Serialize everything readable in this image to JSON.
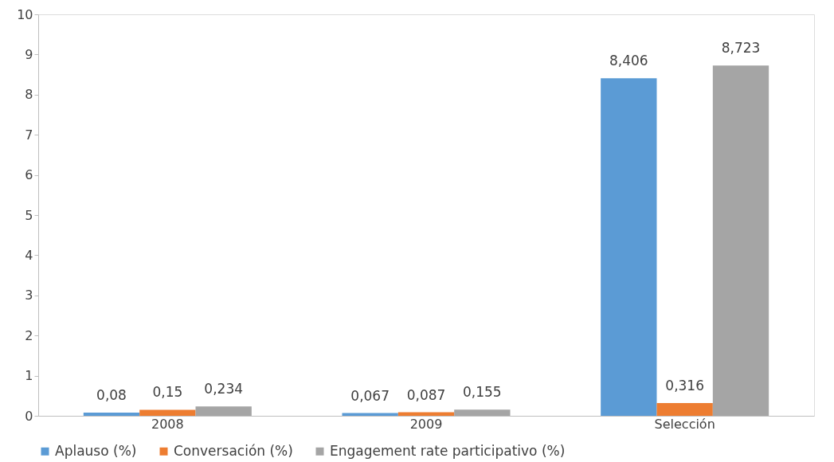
{
  "chart_data": {
    "type": "bar",
    "categories": [
      "2008",
      "2009",
      "Selección"
    ],
    "series": [
      {
        "name": "Aplauso (%)",
        "color": "#5b9bd5",
        "values": [
          0.08,
          0.067,
          8.406
        ],
        "value_labels": [
          "0,08",
          "0,067",
          "8,406"
        ]
      },
      {
        "name": "Conversación (%)",
        "color": "#ed7d31",
        "values": [
          0.15,
          0.087,
          0.316
        ],
        "value_labels": [
          "0,15",
          "0,087",
          "0,316"
        ]
      },
      {
        "name": "Engagement rate participativo (%)",
        "color": "#a5a5a5",
        "values": [
          0.234,
          0.155,
          8.723
        ],
        "value_labels": [
          "0,234",
          "0,155",
          "8,723"
        ]
      }
    ],
    "ylim": [
      0,
      10
    ],
    "yticks": [
      0,
      1,
      2,
      3,
      4,
      5,
      6,
      7,
      8,
      9,
      10
    ],
    "grid": false,
    "legend": "bottom"
  }
}
